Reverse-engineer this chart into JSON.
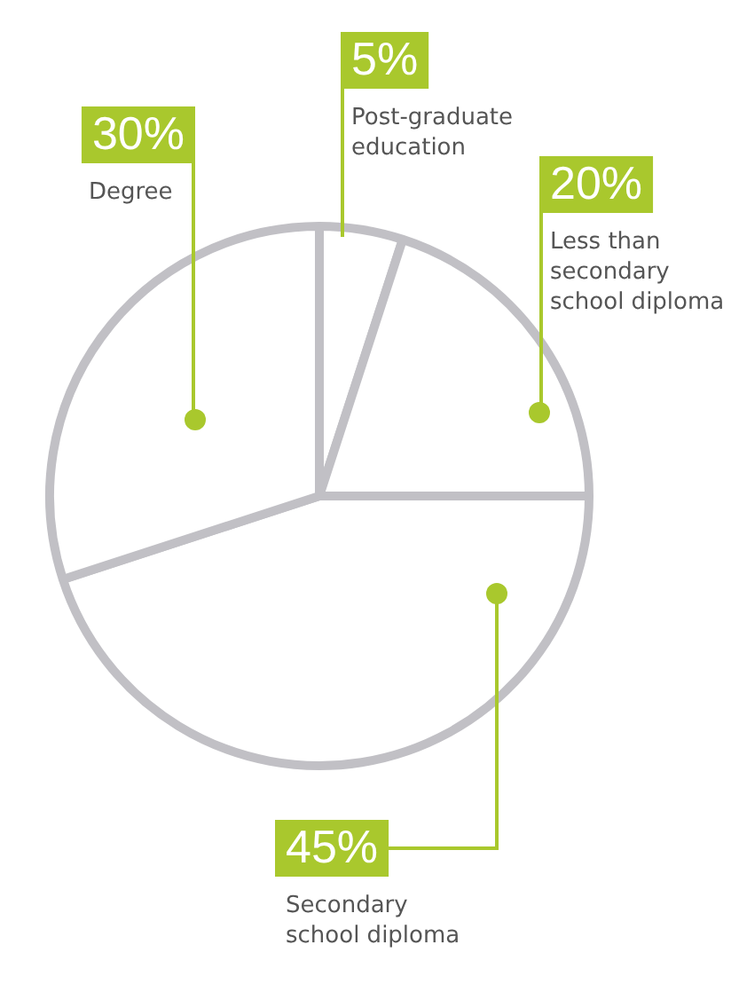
{
  "chart_data": {
    "type": "pie",
    "categories": [
      "Post-graduate education",
      "Less than secondary school diploma",
      "Secondary school diploma",
      "Degree"
    ],
    "values": [
      5,
      20,
      45,
      30
    ],
    "colors": [
      "#ffffff",
      "#ffffff",
      "#ffffff",
      "#ffffff"
    ],
    "value_labels": [
      "5%",
      "20%",
      "45%",
      "30%"
    ],
    "legend": false
  }
}
